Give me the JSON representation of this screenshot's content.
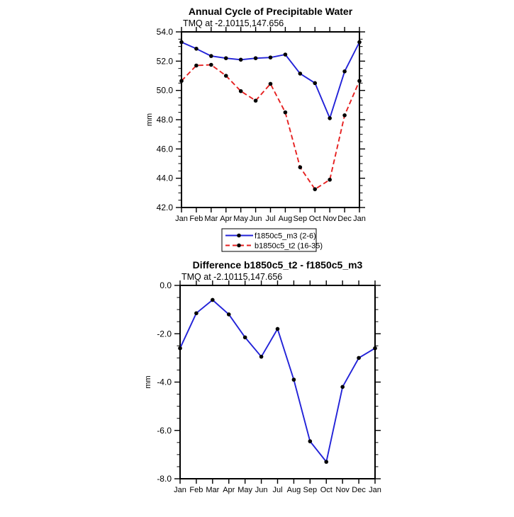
{
  "figure": {
    "background": "#ffffff",
    "text_color": "#000000",
    "frame_color": "#000000"
  },
  "chart_data": [
    {
      "type": "line",
      "title": "Annual Cycle of Precipitable Water",
      "subtitle": "TMQ at -2.10115,147.656",
      "ylabel": "mm",
      "xlabel": "",
      "categories": [
        "Jan",
        "Feb",
        "Mar",
        "Apr",
        "May",
        "Jun",
        "Jul",
        "Aug",
        "Sep",
        "Oct",
        "Nov",
        "Dec",
        "Jan"
      ],
      "ylim": [
        42.0,
        54.0
      ],
      "ytick_step": 2.0,
      "yminor_step": 0.5,
      "grid": false,
      "legend_position": "below-center",
      "series": [
        {
          "name": "f1850c5_m3 (2-6)",
          "color": "#2222d8",
          "line": "solid",
          "marker": "black-dot",
          "values": [
            53.3,
            52.85,
            52.35,
            52.2,
            52.1,
            52.2,
            52.25,
            52.45,
            51.15,
            50.5,
            48.1,
            51.3,
            53.3
          ]
        },
        {
          "name": "b1850c5_t2 (16-35)",
          "color": "#e62020",
          "line": "dashed",
          "marker": "black-dot",
          "values": [
            50.65,
            51.7,
            51.75,
            51.0,
            49.95,
            49.3,
            50.45,
            48.5,
            44.75,
            43.25,
            43.9,
            48.3,
            50.65
          ]
        }
      ]
    },
    {
      "type": "line",
      "title": "Difference b1850c5_t2 - f1850c5_m3",
      "subtitle": "TMQ at -2.10115,147.656",
      "ylabel": "mm",
      "xlabel": "",
      "categories": [
        "Jan",
        "Feb",
        "Mar",
        "Apr",
        "May",
        "Jun",
        "Jul",
        "Aug",
        "Sep",
        "Oct",
        "Nov",
        "Dec",
        "Jan"
      ],
      "ylim": [
        -8.0,
        0.0
      ],
      "ytick_step": 2.0,
      "yminor_step": 0.5,
      "grid": false,
      "legend_position": "none",
      "series": [
        {
          "name": "b1850c5_t2 - f1850c5_m3",
          "color": "#2222d8",
          "line": "solid",
          "marker": "black-dot",
          "values": [
            -2.6,
            -1.15,
            -0.6,
            -1.2,
            -2.15,
            -2.95,
            -1.8,
            -3.9,
            -6.45,
            -7.3,
            -4.2,
            -3.0,
            -2.6
          ]
        }
      ]
    }
  ]
}
